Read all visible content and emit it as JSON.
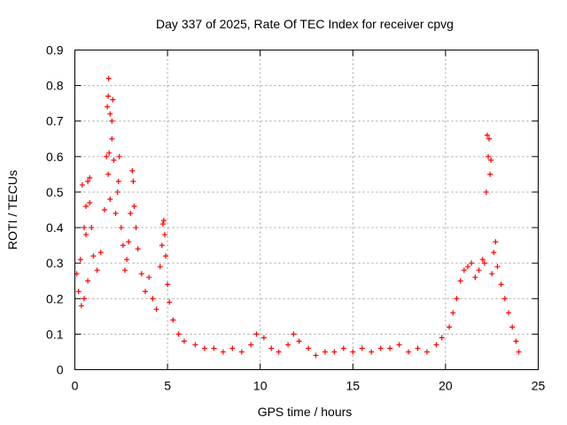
{
  "chart_data": {
    "type": "scatter",
    "title": "Day 337 of 2025, Rate Of TEC Index for receiver cpvg",
    "xlabel": "GPS time / hours",
    "ylabel": "ROTI / TECUs",
    "xlim": [
      0,
      25
    ],
    "ylim": [
      0,
      0.9
    ],
    "x_ticks": [
      0,
      5,
      10,
      15,
      20,
      25
    ],
    "x_tick_labels": [
      "0",
      "5",
      "10",
      "15",
      "20",
      "25"
    ],
    "y_ticks": [
      0,
      0.1,
      0.2,
      0.3,
      0.4,
      0.5,
      0.6,
      0.7,
      0.8,
      0.9
    ],
    "y_tick_labels": [
      "0",
      "0.1",
      "0.2",
      "0.3",
      "0.4",
      "0.5",
      "0.6",
      "0.7",
      "0.8",
      "0.9"
    ],
    "grid": true,
    "marker": "+",
    "series": [
      {
        "name": "ROTI",
        "color": "#ff0000",
        "points": [
          [
            0.1,
            0.27
          ],
          [
            0.2,
            0.22
          ],
          [
            0.3,
            0.31
          ],
          [
            0.4,
            0.52
          ],
          [
            0.5,
            0.4
          ],
          [
            0.5,
            0.2
          ],
          [
            0.6,
            0.46
          ],
          [
            0.7,
            0.53
          ],
          [
            0.8,
            0.54
          ],
          [
            0.8,
            0.47
          ],
          [
            0.9,
            0.4
          ],
          [
            0.6,
            0.38
          ],
          [
            0.7,
            0.25
          ],
          [
            0.35,
            0.18
          ],
          [
            1.0,
            0.32
          ],
          [
            1.2,
            0.28
          ],
          [
            1.4,
            0.33
          ],
          [
            1.6,
            0.45
          ],
          [
            1.7,
            0.6
          ],
          [
            1.75,
            0.74
          ],
          [
            1.8,
            0.77
          ],
          [
            1.82,
            0.82
          ],
          [
            1.9,
            0.72
          ],
          [
            1.85,
            0.61
          ],
          [
            1.8,
            0.55
          ],
          [
            1.9,
            0.48
          ],
          [
            2.0,
            0.7
          ],
          [
            2.0,
            0.65
          ],
          [
            2.05,
            0.76
          ],
          [
            2.1,
            0.59
          ],
          [
            2.2,
            0.44
          ],
          [
            2.3,
            0.5
          ],
          [
            2.35,
            0.53
          ],
          [
            2.4,
            0.6
          ],
          [
            2.5,
            0.4
          ],
          [
            2.6,
            0.35
          ],
          [
            2.7,
            0.28
          ],
          [
            2.8,
            0.31
          ],
          [
            2.9,
            0.36
          ],
          [
            3.0,
            0.44
          ],
          [
            3.1,
            0.56
          ],
          [
            3.15,
            0.53
          ],
          [
            3.2,
            0.46
          ],
          [
            3.3,
            0.4
          ],
          [
            3.4,
            0.34
          ],
          [
            3.6,
            0.27
          ],
          [
            3.8,
            0.22
          ],
          [
            4.0,
            0.26
          ],
          [
            4.2,
            0.2
          ],
          [
            4.4,
            0.17
          ],
          [
            4.6,
            0.29
          ],
          [
            4.7,
            0.35
          ],
          [
            4.75,
            0.41
          ],
          [
            4.8,
            0.42
          ],
          [
            4.85,
            0.38
          ],
          [
            4.9,
            0.32
          ],
          [
            5.0,
            0.24
          ],
          [
            5.1,
            0.19
          ],
          [
            5.3,
            0.14
          ],
          [
            5.6,
            0.1
          ],
          [
            5.9,
            0.08
          ],
          [
            6.5,
            0.07
          ],
          [
            7.0,
            0.06
          ],
          [
            7.5,
            0.06
          ],
          [
            8.0,
            0.05
          ],
          [
            8.5,
            0.06
          ],
          [
            9.0,
            0.05
          ],
          [
            9.5,
            0.07
          ],
          [
            9.8,
            0.1
          ],
          [
            10.2,
            0.09
          ],
          [
            10.6,
            0.06
          ],
          [
            11.0,
            0.05
          ],
          [
            11.5,
            0.07
          ],
          [
            11.8,
            0.1
          ],
          [
            12.1,
            0.08
          ],
          [
            12.6,
            0.06
          ],
          [
            13.0,
            0.04
          ],
          [
            13.5,
            0.05
          ],
          [
            14.0,
            0.05
          ],
          [
            14.5,
            0.06
          ],
          [
            15.0,
            0.05
          ],
          [
            15.5,
            0.06
          ],
          [
            16.0,
            0.05
          ],
          [
            16.5,
            0.06
          ],
          [
            17.0,
            0.06
          ],
          [
            17.5,
            0.07
          ],
          [
            18.0,
            0.05
          ],
          [
            18.5,
            0.06
          ],
          [
            19.0,
            0.05
          ],
          [
            19.5,
            0.07
          ],
          [
            19.8,
            0.09
          ],
          [
            20.2,
            0.12
          ],
          [
            20.4,
            0.16
          ],
          [
            20.6,
            0.2
          ],
          [
            20.8,
            0.25
          ],
          [
            21.0,
            0.28
          ],
          [
            21.2,
            0.29
          ],
          [
            21.4,
            0.3
          ],
          [
            21.6,
            0.26
          ],
          [
            21.8,
            0.28
          ],
          [
            22.0,
            0.31
          ],
          [
            22.1,
            0.3
          ],
          [
            22.2,
            0.5
          ],
          [
            22.25,
            0.66
          ],
          [
            22.3,
            0.6
          ],
          [
            22.35,
            0.65
          ],
          [
            22.4,
            0.55
          ],
          [
            22.45,
            0.59
          ],
          [
            22.5,
            0.27
          ],
          [
            22.6,
            0.33
          ],
          [
            22.7,
            0.36
          ],
          [
            22.8,
            0.29
          ],
          [
            23.0,
            0.24
          ],
          [
            23.2,
            0.2
          ],
          [
            23.4,
            0.16
          ],
          [
            23.6,
            0.12
          ],
          [
            23.8,
            0.08
          ],
          [
            23.95,
            0.05
          ]
        ]
      }
    ]
  }
}
